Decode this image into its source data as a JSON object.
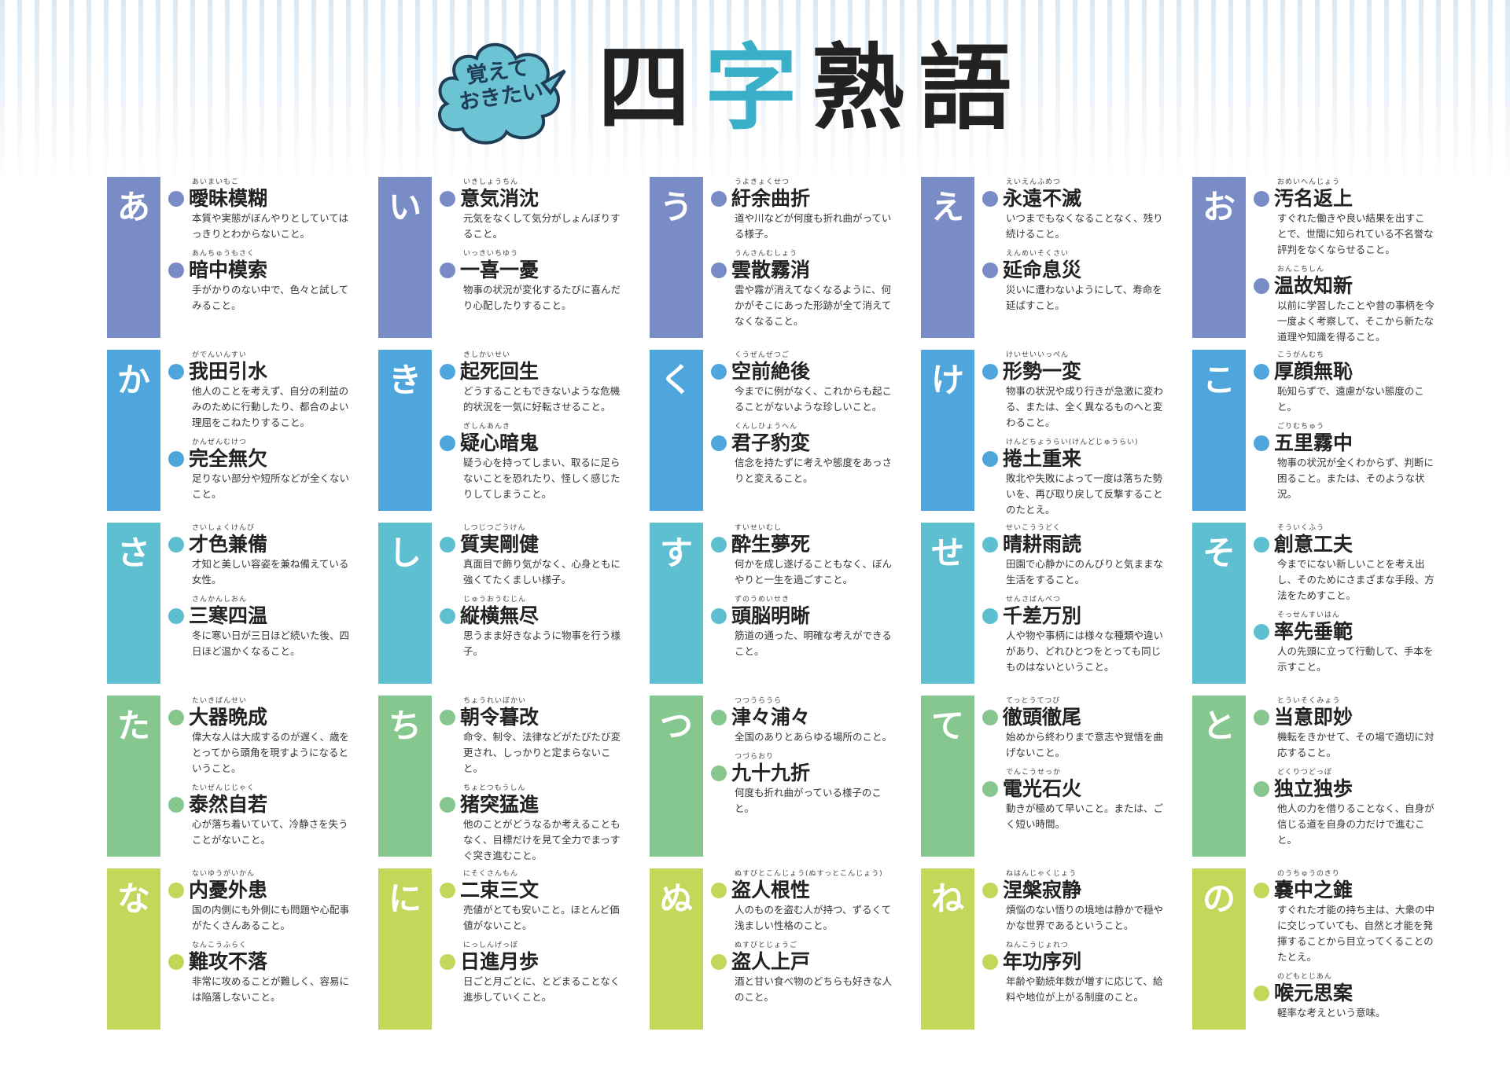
{
  "header": {
    "badge_line1": "覚えて",
    "badge_line2": "おきたい",
    "title_1": "四",
    "title_2": "字",
    "title_3": "熟",
    "title_4": "語"
  },
  "colors": {
    "row_a": "#7a8cc6",
    "row_ka": "#4fa6dc",
    "row_sa": "#5ebfd1",
    "row_ta": "#86c68f",
    "row_na": "#c3d75a",
    "cloud": "#6cc3d4",
    "title_accent": "#3ab0c8"
  },
  "cells": [
    {
      "kana": "あ",
      "items": [
        {
          "ruby": "あいまいもこ",
          "word": "曖昧模糊",
          "def": "本質や実態がぼんやりとしていてはっきりとわからないこと。"
        },
        {
          "ruby": "あんちゅうもさく",
          "word": "暗中模索",
          "def": "手がかりのない中で、色々と試してみること。"
        }
      ]
    },
    {
      "kana": "い",
      "items": [
        {
          "ruby": "いきしょうちん",
          "word": "意気消沈",
          "def": "元気をなくして気分がしょんぼりすること。"
        },
        {
          "ruby": "いっきいちゆう",
          "word": "一喜一憂",
          "def": "物事の状況が変化するたびに喜んだり心配したりすること。"
        }
      ]
    },
    {
      "kana": "う",
      "items": [
        {
          "ruby": "うよきょくせつ",
          "word": "紆余曲折",
          "def": "道や川などが何度も折れ曲がっている様子。"
        },
        {
          "ruby": "うんさんむしょう",
          "word": "雲散霧消",
          "def": "雲や霧が消えてなくなるように、何かがそこにあった形跡が全て消えてなくなること。"
        }
      ]
    },
    {
      "kana": "え",
      "items": [
        {
          "ruby": "えいえんふめつ",
          "word": "永遠不滅",
          "def": "いつまでもなくなることなく、残り続けること。"
        },
        {
          "ruby": "えんめいそくさい",
          "word": "延命息災",
          "def": "災いに遭わないようにして、寿命を延ばすこと。"
        }
      ]
    },
    {
      "kana": "お",
      "items": [
        {
          "ruby": "おめいへんじょう",
          "word": "汚名返上",
          "def": "すぐれた働きや良い結果を出すことで、世間に知られている不名誉な評判をなくならせること。"
        },
        {
          "ruby": "おんこちしん",
          "word": "温故知新",
          "def": "以前に学習したことや昔の事柄を今一度よく考察して、そこから新たな道理や知識を得ること。"
        }
      ]
    },
    {
      "kana": "か",
      "items": [
        {
          "ruby": "がでんいんすい",
          "word": "我田引水",
          "def": "他人のことを考えず、自分の利益のみのために行動したり、都合のよい理屈をこねたりすること。"
        },
        {
          "ruby": "かんぜんむけつ",
          "word": "完全無欠",
          "def": "足りない部分や短所などが全くないこと。"
        }
      ]
    },
    {
      "kana": "き",
      "items": [
        {
          "ruby": "きしかいせい",
          "word": "起死回生",
          "def": "どうすることもできないような危機的状況を一気に好転させること。"
        },
        {
          "ruby": "ぎしんあんき",
          "word": "疑心暗鬼",
          "def": "疑う心を持ってしまい、取るに足らないことを恐れたり、怪しく感じたりしてしまうこと。"
        }
      ]
    },
    {
      "kana": "く",
      "items": [
        {
          "ruby": "くうぜんぜつご",
          "word": "空前絶後",
          "def": "今までに例がなく、これからも起こることがないような珍しいこと。"
        },
        {
          "ruby": "くんしひょうへん",
          "word": "君子豹変",
          "def": "信念を持たずに考えや態度をあっさりと変えること。"
        }
      ]
    },
    {
      "kana": "け",
      "items": [
        {
          "ruby": "けいせいいっぺん",
          "word": "形勢一変",
          "def": "物事の状況や成り行きが急激に変わる、または、全く異なるものへと変わること。"
        },
        {
          "ruby": "けんどちょうらい(けんどじゅうらい)",
          "word": "捲土重来",
          "def": "敗北や失敗によって一度は落ちた勢いを、再び取り戻して反撃することのたとえ。"
        }
      ]
    },
    {
      "kana": "こ",
      "items": [
        {
          "ruby": "こうがんむち",
          "word": "厚顔無恥",
          "def": "恥知らずで、遠慮がない態度のこと。"
        },
        {
          "ruby": "ごりむちゅう",
          "word": "五里霧中",
          "def": "物事の状況が全くわからず、判断に困ること。または、そのような状況。"
        }
      ]
    },
    {
      "kana": "さ",
      "items": [
        {
          "ruby": "さいしょくけんび",
          "word": "才色兼備",
          "def": "才知と美しい容姿を兼ね備えている女性。"
        },
        {
          "ruby": "さんかんしおん",
          "word": "三寒四温",
          "def": "冬に寒い日が三日ほど続いた後、四日ほど温かくなること。"
        }
      ]
    },
    {
      "kana": "し",
      "items": [
        {
          "ruby": "しつじつごうけん",
          "word": "質実剛健",
          "def": "真面目で飾り気がなく、心身ともに強くてたくましい様子。"
        },
        {
          "ruby": "じゅうおうむじん",
          "word": "縦横無尽",
          "def": "思うまま好きなように物事を行う様子。"
        }
      ]
    },
    {
      "kana": "す",
      "items": [
        {
          "ruby": "すいせいむし",
          "word": "酔生夢死",
          "def": "何かを成し遂げることもなく、ぼんやりと一生を過ごすこと。"
        },
        {
          "ruby": "ずのうめいせき",
          "word": "頭脳明晰",
          "def": "筋道の通った、明確な考えができること。"
        }
      ]
    },
    {
      "kana": "せ",
      "items": [
        {
          "ruby": "せいこううどく",
          "word": "晴耕雨読",
          "def": "田園で心静かにのんびりと気ままな生活をすること。"
        },
        {
          "ruby": "せんさばんべつ",
          "word": "千差万別",
          "def": "人や物や事柄には様々な種類や違いがあり、どれひとつをとっても同じものはないということ。"
        }
      ]
    },
    {
      "kana": "そ",
      "items": [
        {
          "ruby": "そういくふう",
          "word": "創意工夫",
          "def": "今までにない新しいことを考え出し、そのためにさまざまな手段、方法をためすこと。"
        },
        {
          "ruby": "そっせんすいはん",
          "word": "率先垂範",
          "def": "人の先頭に立って行動して、手本を示すこと。"
        }
      ]
    },
    {
      "kana": "た",
      "items": [
        {
          "ruby": "たいきばんせい",
          "word": "大器晩成",
          "def": "偉大な人は大成するのが遅く、歳をとってから頭角を現すようになるということ。"
        },
        {
          "ruby": "たいぜんじじゃく",
          "word": "泰然自若",
          "def": "心が落ち着いていて、冷静さを失うことがないこと。"
        }
      ]
    },
    {
      "kana": "ち",
      "items": [
        {
          "ruby": "ちょうれいぼかい",
          "word": "朝令暮改",
          "def": "命令、制令、法律などがたびたび変更され、しっかりと定まらないこと。"
        },
        {
          "ruby": "ちょとつもうしん",
          "word": "猪突猛進",
          "def": "他のことがどうなるか考えることもなく、目標だけを見て全力でまっすぐ突き進むこと。"
        }
      ]
    },
    {
      "kana": "つ",
      "items": [
        {
          "ruby": "つつうらうら",
          "word": "津々浦々",
          "def": "全国のありとあらゆる場所のこと。"
        },
        {
          "ruby": "つづらおり",
          "word": "九十九折",
          "def": "何度も折れ曲がっている様子のこと。"
        }
      ]
    },
    {
      "kana": "て",
      "items": [
        {
          "ruby": "てっとうてつび",
          "word": "徹頭徹尾",
          "def": "始めから終わりまで意志や覚悟を曲げないこと。"
        },
        {
          "ruby": "でんこうせっか",
          "word": "電光石火",
          "def": "動きが極めて早いこと。または、ごく短い時間。"
        }
      ]
    },
    {
      "kana": "と",
      "items": [
        {
          "ruby": "とういそくみょう",
          "word": "当意即妙",
          "def": "機転をきかせて、その場で適切に対応すること。"
        },
        {
          "ruby": "どくりつどっぽ",
          "word": "独立独歩",
          "def": "他人の力を借りることなく、自身が信じる道を自身の力だけで進むこと。"
        }
      ]
    },
    {
      "kana": "な",
      "items": [
        {
          "ruby": "ないゆうがいかん",
          "word": "内憂外患",
          "def": "国の内側にも外側にも問題や心配事がたくさんあること。"
        },
        {
          "ruby": "なんこうふらく",
          "word": "難攻不落",
          "def": "非常に攻めることが難しく、容易には陥落しないこと。"
        }
      ]
    },
    {
      "kana": "に",
      "items": [
        {
          "ruby": "にそくさんもん",
          "word": "二束三文",
          "def": "売値がとても安いこと。ほとんど価値がないこと。"
        },
        {
          "ruby": "にっしんげっぽ",
          "word": "日進月歩",
          "def": "日ごと月ごとに、とどまることなく進歩していくこと。"
        }
      ]
    },
    {
      "kana": "ぬ",
      "items": [
        {
          "ruby": "ぬすびとこんじょう(ぬすっとこんじょう)",
          "word": "盗人根性",
          "def": "人のものを盗む人が持つ、ずるくて浅ましい性格のこと。"
        },
        {
          "ruby": "ぬすびとじょうご",
          "word": "盗人上戸",
          "def": "酒と甘い食べ物のどちらも好きな人のこと。"
        }
      ]
    },
    {
      "kana": "ね",
      "items": [
        {
          "ruby": "ねはんじゃくじょう",
          "word": "涅槃寂静",
          "def": "煩悩のない悟りの境地は静かで穏やかな世界であるということ。"
        },
        {
          "ruby": "ねんこうじょれつ",
          "word": "年功序列",
          "def": "年齢や勤続年数が増すに応じて、給料や地位が上がる制度のこと。"
        }
      ]
    },
    {
      "kana": "の",
      "items": [
        {
          "ruby": "のうちゅうのきり",
          "word": "嚢中之錐",
          "def": "すぐれた才能の持ち主は、大衆の中に交じっていても、自然と才能を発揮することから目立ってくることのたとえ。"
        },
        {
          "ruby": "のどもとじあん",
          "word": "喉元思案",
          "def": "軽率な考えという意味。"
        }
      ]
    }
  ]
}
